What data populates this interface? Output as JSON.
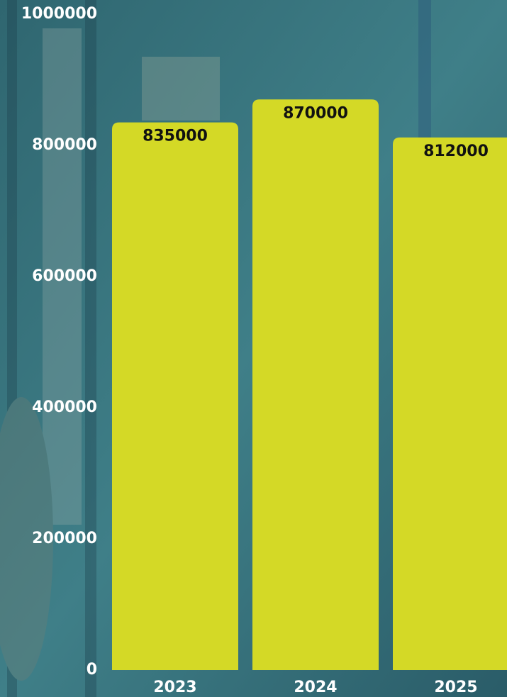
{
  "chart_data": {
    "type": "bar",
    "categories": [
      "2023",
      "2024",
      "2025"
    ],
    "values": [
      835000,
      870000,
      812000
    ],
    "color": "#d4d926",
    "ylim": [
      0,
      1000000
    ],
    "yticks": [
      0,
      200000,
      400000,
      600000,
      800000,
      1000000
    ],
    "grid": false
  }
}
